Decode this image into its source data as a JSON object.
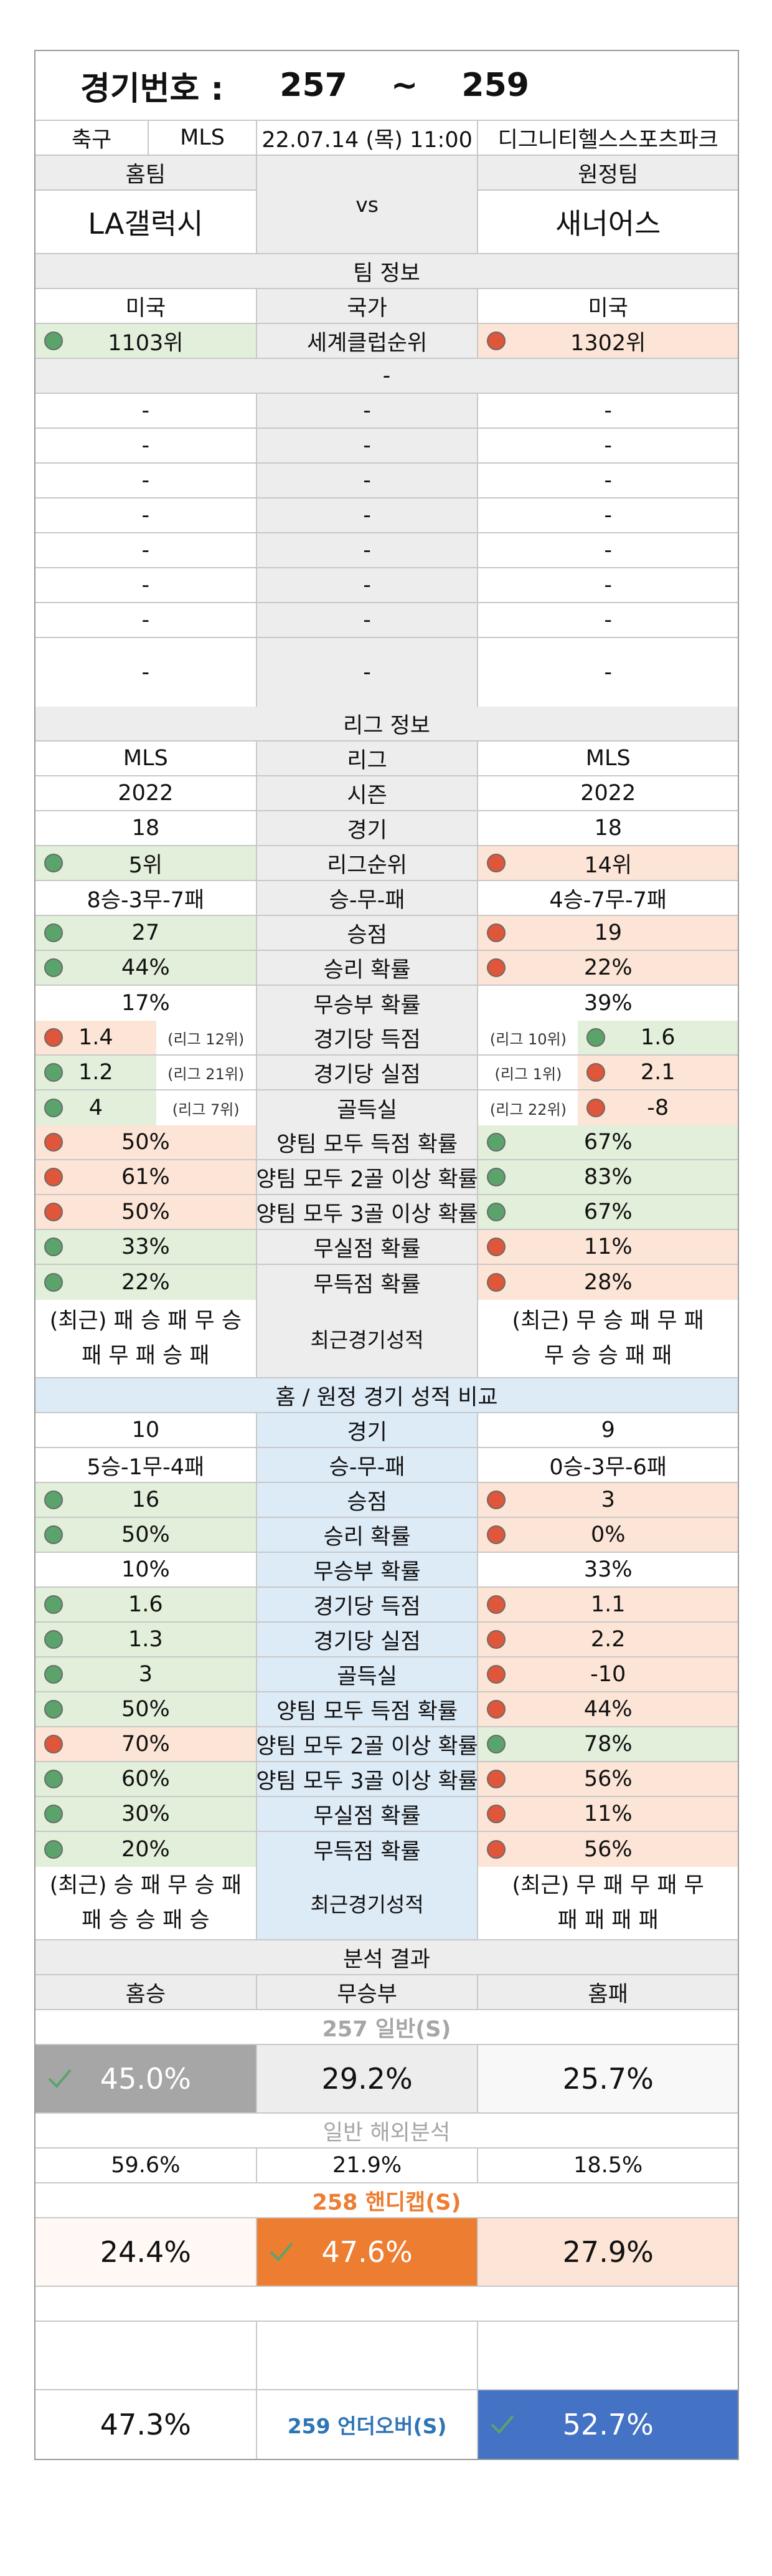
{
  "header": {
    "label": "경기번호 :",
    "start": "257",
    "sep": "~",
    "end": "259"
  },
  "match": {
    "sport": "축구",
    "league": "MLS",
    "datetime": "22.07.14 (목) 11:00",
    "venue": "디그니티헬스스포츠파크"
  },
  "teams": {
    "home_label": "홈팀",
    "away_label": "원정팀",
    "home": "LA갤럭시",
    "vs": "vs",
    "away": "새너어스"
  },
  "team_info": {
    "title": "팀 정보",
    "country": {
      "home": "미국",
      "label": "국가",
      "away": "미국"
    },
    "club_rank": {
      "home": "1103위",
      "label": "세계클럽순위",
      "away": "1302위"
    },
    "section_dash": "-",
    "dash_rows": [
      [
        "-",
        "-",
        "-"
      ],
      [
        "-",
        "-",
        "-"
      ],
      [
        "-",
        "-",
        "-"
      ],
      [
        "-",
        "-",
        "-"
      ],
      [
        "-",
        "-",
        "-"
      ],
      [
        "-",
        "-",
        "-"
      ],
      [
        "-",
        "-",
        "-"
      ],
      [
        "-",
        "-",
        "-"
      ]
    ]
  },
  "league_info": {
    "title": "리그 정보",
    "rows": [
      {
        "home": "MLS",
        "label": "리그",
        "away": "MLS"
      },
      {
        "home": "2022",
        "label": "시즌",
        "away": "2022"
      },
      {
        "home": "18",
        "label": "경기",
        "away": "18"
      },
      {
        "home": "5위",
        "label": "리그순위",
        "away": "14위",
        "hc": "g",
        "ac": "p",
        "hd": "gd",
        "ad": "rd"
      },
      {
        "home": "8승-3무-7패",
        "label": "승-무-패",
        "away": "4승-7무-7패"
      },
      {
        "home": "27",
        "label": "승점",
        "away": "19",
        "hc": "g",
        "ac": "p",
        "hd": "gd",
        "ad": "rd"
      },
      {
        "home": "44%",
        "label": "승리 확률",
        "away": "22%",
        "hc": "g",
        "ac": "p",
        "hd": "gd",
        "ad": "rd"
      },
      {
        "home": "17%",
        "label": "무승부 확률",
        "away": "39%"
      }
    ],
    "ranked_rows": [
      {
        "home": "1.4",
        "home_note": "(리그 12위)",
        "label": "경기당 득점",
        "away": "1.6",
        "away_note": "(리그 10위)",
        "hc": "p",
        "ac": "g",
        "hd": "rd",
        "ad": "gd"
      },
      {
        "home": "1.2",
        "home_note": "(리그 21위)",
        "label": "경기당 실점",
        "away": "2.1",
        "away_note": "(리그 1위)",
        "hc": "g",
        "ac": "p",
        "hd": "gd",
        "ad": "rd"
      },
      {
        "home": "4",
        "home_note": "(리그 7위)",
        "label": "골득실",
        "away": "-8",
        "away_note": "(리그 22위)",
        "hc": "g",
        "ac": "p",
        "hd": "gd",
        "ad": "rd"
      }
    ],
    "prob_rows": [
      {
        "home": "50%",
        "label": "양팀 모두 득점 확률",
        "away": "67%",
        "hc": "p",
        "ac": "g",
        "hd": "rd",
        "ad": "gd"
      },
      {
        "home": "61%",
        "label": "양팀 모두 2골 이상 확률",
        "away": "83%",
        "hc": "p",
        "ac": "g",
        "hd": "rd",
        "ad": "gd"
      },
      {
        "home": "50%",
        "label": "양팀 모두 3골 이상 확률",
        "away": "67%",
        "hc": "p",
        "ac": "g",
        "hd": "rd",
        "ad": "gd"
      },
      {
        "home": "33%",
        "label": "무실점 확률",
        "away": "11%",
        "hc": "g",
        "ac": "p",
        "hd": "gd",
        "ad": "rd"
      },
      {
        "home": "22%",
        "label": "무득점 확률",
        "away": "28%",
        "hc": "g",
        "ac": "p",
        "hd": "gd",
        "ad": "rd"
      }
    ],
    "recent": {
      "home_l1": "(최근) 패 승 패 무 승",
      "home_l2": "패 무 패 승 패",
      "label": "최근경기성적",
      "away_l1": "(최근) 무 승 패 무 패",
      "away_l2": "무 승 승 패 패"
    }
  },
  "home_away": {
    "title": "홈 / 원정 경기 성적 비교",
    "rows": [
      {
        "home": "10",
        "label": "경기",
        "away": "9"
      },
      {
        "home": "5승-1무-4패",
        "label": "승-무-패",
        "away": "0승-3무-6패"
      },
      {
        "home": "16",
        "label": "승점",
        "away": "3",
        "hc": "g",
        "ac": "p",
        "hd": "gd",
        "ad": "rd"
      },
      {
        "home": "50%",
        "label": "승리 확률",
        "away": "0%",
        "hc": "g",
        "ac": "p",
        "hd": "gd",
        "ad": "rd"
      },
      {
        "home": "10%",
        "label": "무승부 확률",
        "away": "33%"
      },
      {
        "home": "1.6",
        "label": "경기당 득점",
        "away": "1.1",
        "hc": "g",
        "ac": "p",
        "hd": "gd",
        "ad": "rd"
      },
      {
        "home": "1.3",
        "label": "경기당 실점",
        "away": "2.2",
        "hc": "g",
        "ac": "p",
        "hd": "gd",
        "ad": "rd"
      },
      {
        "home": "3",
        "label": "골득실",
        "away": "-10",
        "hc": "g",
        "ac": "p",
        "hd": "gd",
        "ad": "rd"
      },
      {
        "home": "50%",
        "label": "양팀 모두 득점 확률",
        "away": "44%",
        "hc": "g",
        "ac": "p",
        "hd": "gd",
        "ad": "rd"
      },
      {
        "home": "70%",
        "label": "양팀 모두 2골 이상 확률",
        "away": "78%",
        "hc": "p",
        "ac": "g",
        "hd": "rd",
        "ad": "gd"
      },
      {
        "home": "60%",
        "label": "양팀 모두 3골 이상 확률",
        "away": "56%",
        "hc": "g",
        "ac": "p",
        "hd": "gd",
        "ad": "rd"
      },
      {
        "home": "30%",
        "label": "무실점 확률",
        "away": "11%",
        "hc": "g",
        "ac": "p",
        "hd": "gd",
        "ad": "rd"
      },
      {
        "home": "20%",
        "label": "무득점 확률",
        "away": "56%",
        "hc": "g",
        "ac": "p",
        "hd": "gd",
        "ad": "rd"
      }
    ],
    "recent": {
      "home_l1": "(최근) 승 패 무 승 패",
      "home_l2": "패 승 승 패 승",
      "label": "최근경기성적",
      "away_l1": "(최근) 무 패 무 패 무",
      "away_l2": "패 패 패 패"
    }
  },
  "analysis": {
    "title": "분석 결과",
    "cols": {
      "home": "홈승",
      "draw": "무승부",
      "away": "홈패"
    },
    "general_title": "257 일반(S)",
    "general": {
      "home": "45.0%",
      "draw": "29.2%",
      "away": "25.7%"
    },
    "overseas_title": "일반 해외분석",
    "overseas": {
      "home": "59.6%",
      "draw": "21.9%",
      "away": "18.5%"
    },
    "handicap_title": "258 핸디캡(S)",
    "handicap": {
      "home": "24.4%",
      "draw": "47.6%",
      "away": "27.9%"
    },
    "under_over": {
      "under": "47.3%",
      "label": "259 언더오버(S)",
      "over": "52.7%"
    }
  },
  "colors": {
    "green_bg": "#e2efda",
    "pink_bg": "#fce4d6",
    "blue_bg": "#ddebf7",
    "orange": "#ed7d31",
    "blue": "#4472c4",
    "gray": "#a6a6a6",
    "green_dot": "#5aa46b",
    "red_dot": "#e0563a"
  }
}
